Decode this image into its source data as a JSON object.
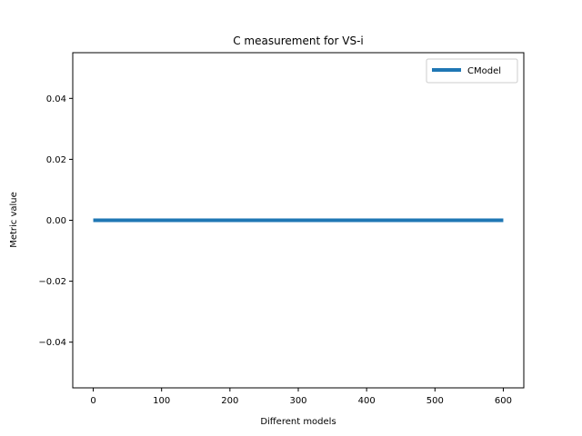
{
  "chart_data": {
    "type": "line",
    "title": "C measurement for VS-i",
    "xlabel": "Different models",
    "ylabel": "Metric value",
    "xlim": [
      -30,
      630
    ],
    "ylim": [
      -0.055,
      0.055
    ],
    "xticks": [
      0,
      100,
      200,
      300,
      400,
      500,
      600
    ],
    "yticks": [
      0.04,
      0.02,
      0.0,
      -0.02,
      -0.04
    ],
    "ytick_labels": [
      "0.04",
      "0.02",
      "0.00",
      "−0.02",
      "−0.04"
    ],
    "grid": false,
    "legend_position": "upper right",
    "series": [
      {
        "name": "CModel",
        "color": "#1f77b4",
        "x": [
          0,
          600
        ],
        "y": [
          0.0,
          0.0
        ]
      }
    ]
  }
}
